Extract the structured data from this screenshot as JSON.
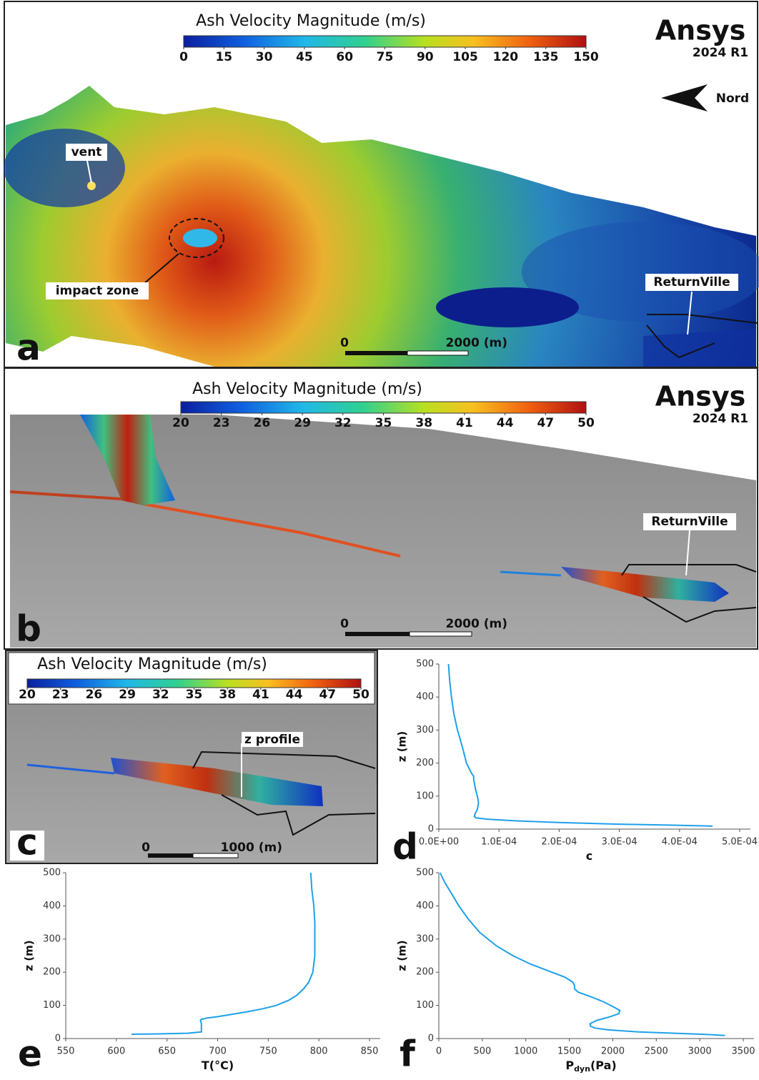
{
  "panels": {
    "a": {
      "letter": "a",
      "colorbar": {
        "title": "Ash Velocity Magnitude (m/s)",
        "ticks": [
          0,
          15,
          30,
          45,
          60,
          75,
          90,
          105,
          120,
          135,
          150
        ]
      },
      "logo": "Ansys",
      "version": "2024 R1",
      "north": "Nord",
      "labels": [
        "vent",
        "impact zone",
        "ReturnVille"
      ],
      "scale_bar": [
        "0",
        "2000 (m)"
      ]
    },
    "b": {
      "letter": "b",
      "colorbar": {
        "title": "Ash Velocity Magnitude (m/s)",
        "ticks": [
          20,
          23,
          26,
          29,
          32,
          35,
          38,
          41,
          44,
          47,
          50
        ]
      },
      "logo": "Ansys",
      "version": "2024 R1",
      "labels": [
        "ReturnVille"
      ],
      "scale_bar": [
        "0",
        "2000 (m)"
      ]
    },
    "c": {
      "letter": "c",
      "colorbar": {
        "title": "Ash Velocity Magnitude (m/s)",
        "ticks": [
          20,
          23,
          26,
          29,
          32,
          35,
          38,
          41,
          44,
          47,
          50
        ]
      },
      "labels": [
        "z profile"
      ],
      "scale_bar": [
        "0",
        "1000 (m)"
      ]
    }
  },
  "chart_data": [
    {
      "type": "line",
      "letter": "d",
      "ylabel": "z (m)",
      "xlabel": "c",
      "color": "#1ea0ea",
      "xlim": [
        0,
        0.0005
      ],
      "ylim": [
        0,
        500
      ],
      "xticks": [
        {
          "value": 0,
          "label": "0.0E+00"
        },
        {
          "value": 0.0001,
          "label": "1.0E-04"
        },
        {
          "value": 0.0002,
          "label": "2.0E-04"
        },
        {
          "value": 0.0003,
          "label": "3.0E-04"
        },
        {
          "value": 0.0004,
          "label": "4.0E-04"
        },
        {
          "value": 0.0005,
          "label": "5.0E-04"
        }
      ],
      "yticks": [
        0,
        100,
        200,
        300,
        400,
        500
      ],
      "x": [
        1.6e-05,
        1.8e-05,
        2.1e-05,
        2.5e-05,
        3.1e-05,
        3.9e-05,
        4.6e-05,
        5.4e-05,
        5.8e-05,
        5.8e-05,
        6.1e-05,
        6.4e-05,
        6.6e-05,
        6.4e-05,
        6e-05,
        5.9e-05,
        6.2e-05,
        8e-05,
        0.00013,
        0.0002,
        0.0003,
        0.00039,
        0.000455
      ],
      "values": [
        500,
        450,
        400,
        350,
        300,
        250,
        200,
        170,
        160,
        150,
        120,
        100,
        80,
        60,
        45,
        38,
        34,
        30,
        25,
        20,
        15,
        12,
        9
      ]
    },
    {
      "type": "line",
      "letter": "e",
      "ylabel": "z (m)",
      "xlabel": "T(°C)",
      "color": "#1ea0ea",
      "xlim": [
        550,
        850
      ],
      "ylim": [
        0,
        500
      ],
      "xticks": [
        550,
        600,
        650,
        700,
        750,
        800,
        850
      ],
      "yticks": [
        0,
        100,
        200,
        300,
        400,
        500
      ],
      "x": [
        792,
        793,
        795,
        796,
        796,
        796,
        794,
        790,
        785,
        778,
        770,
        758,
        745,
        728,
        712,
        700,
        690,
        684,
        683,
        684,
        684,
        684,
        670,
        640,
        615
      ],
      "values": [
        500,
        450,
        400,
        350,
        300,
        250,
        200,
        170,
        150,
        130,
        115,
        100,
        90,
        80,
        72,
        66,
        62,
        58,
        55,
        45,
        30,
        20,
        16,
        14,
        13
      ]
    },
    {
      "type": "line",
      "letter": "f",
      "ylabel": "z (m)",
      "xlabel": "P",
      "xlabel_sub": "dyn",
      "xlabel_unit": "(Pa)",
      "color": "#1ea0ea",
      "xlim": [
        0,
        3500
      ],
      "ylim": [
        0,
        500
      ],
      "xticks": [
        0,
        500,
        1000,
        1500,
        2000,
        2500,
        3000,
        3500
      ],
      "yticks": [
        0,
        100,
        200,
        300,
        400,
        500
      ],
      "x": [
        15,
        70,
        140,
        230,
        340,
        470,
        660,
        850,
        1050,
        1250,
        1450,
        1540,
        1560,
        1560,
        1600,
        1760,
        1900,
        2010,
        2080,
        2070,
        1960,
        1820,
        1740,
        1740,
        1790,
        1950,
        2300,
        2800,
        3100,
        3290
      ],
      "values": [
        500,
        470,
        440,
        400,
        360,
        320,
        280,
        250,
        225,
        205,
        185,
        170,
        160,
        150,
        140,
        125,
        110,
        95,
        85,
        75,
        65,
        55,
        45,
        38,
        32,
        26,
        20,
        15,
        12,
        9
      ]
    }
  ]
}
